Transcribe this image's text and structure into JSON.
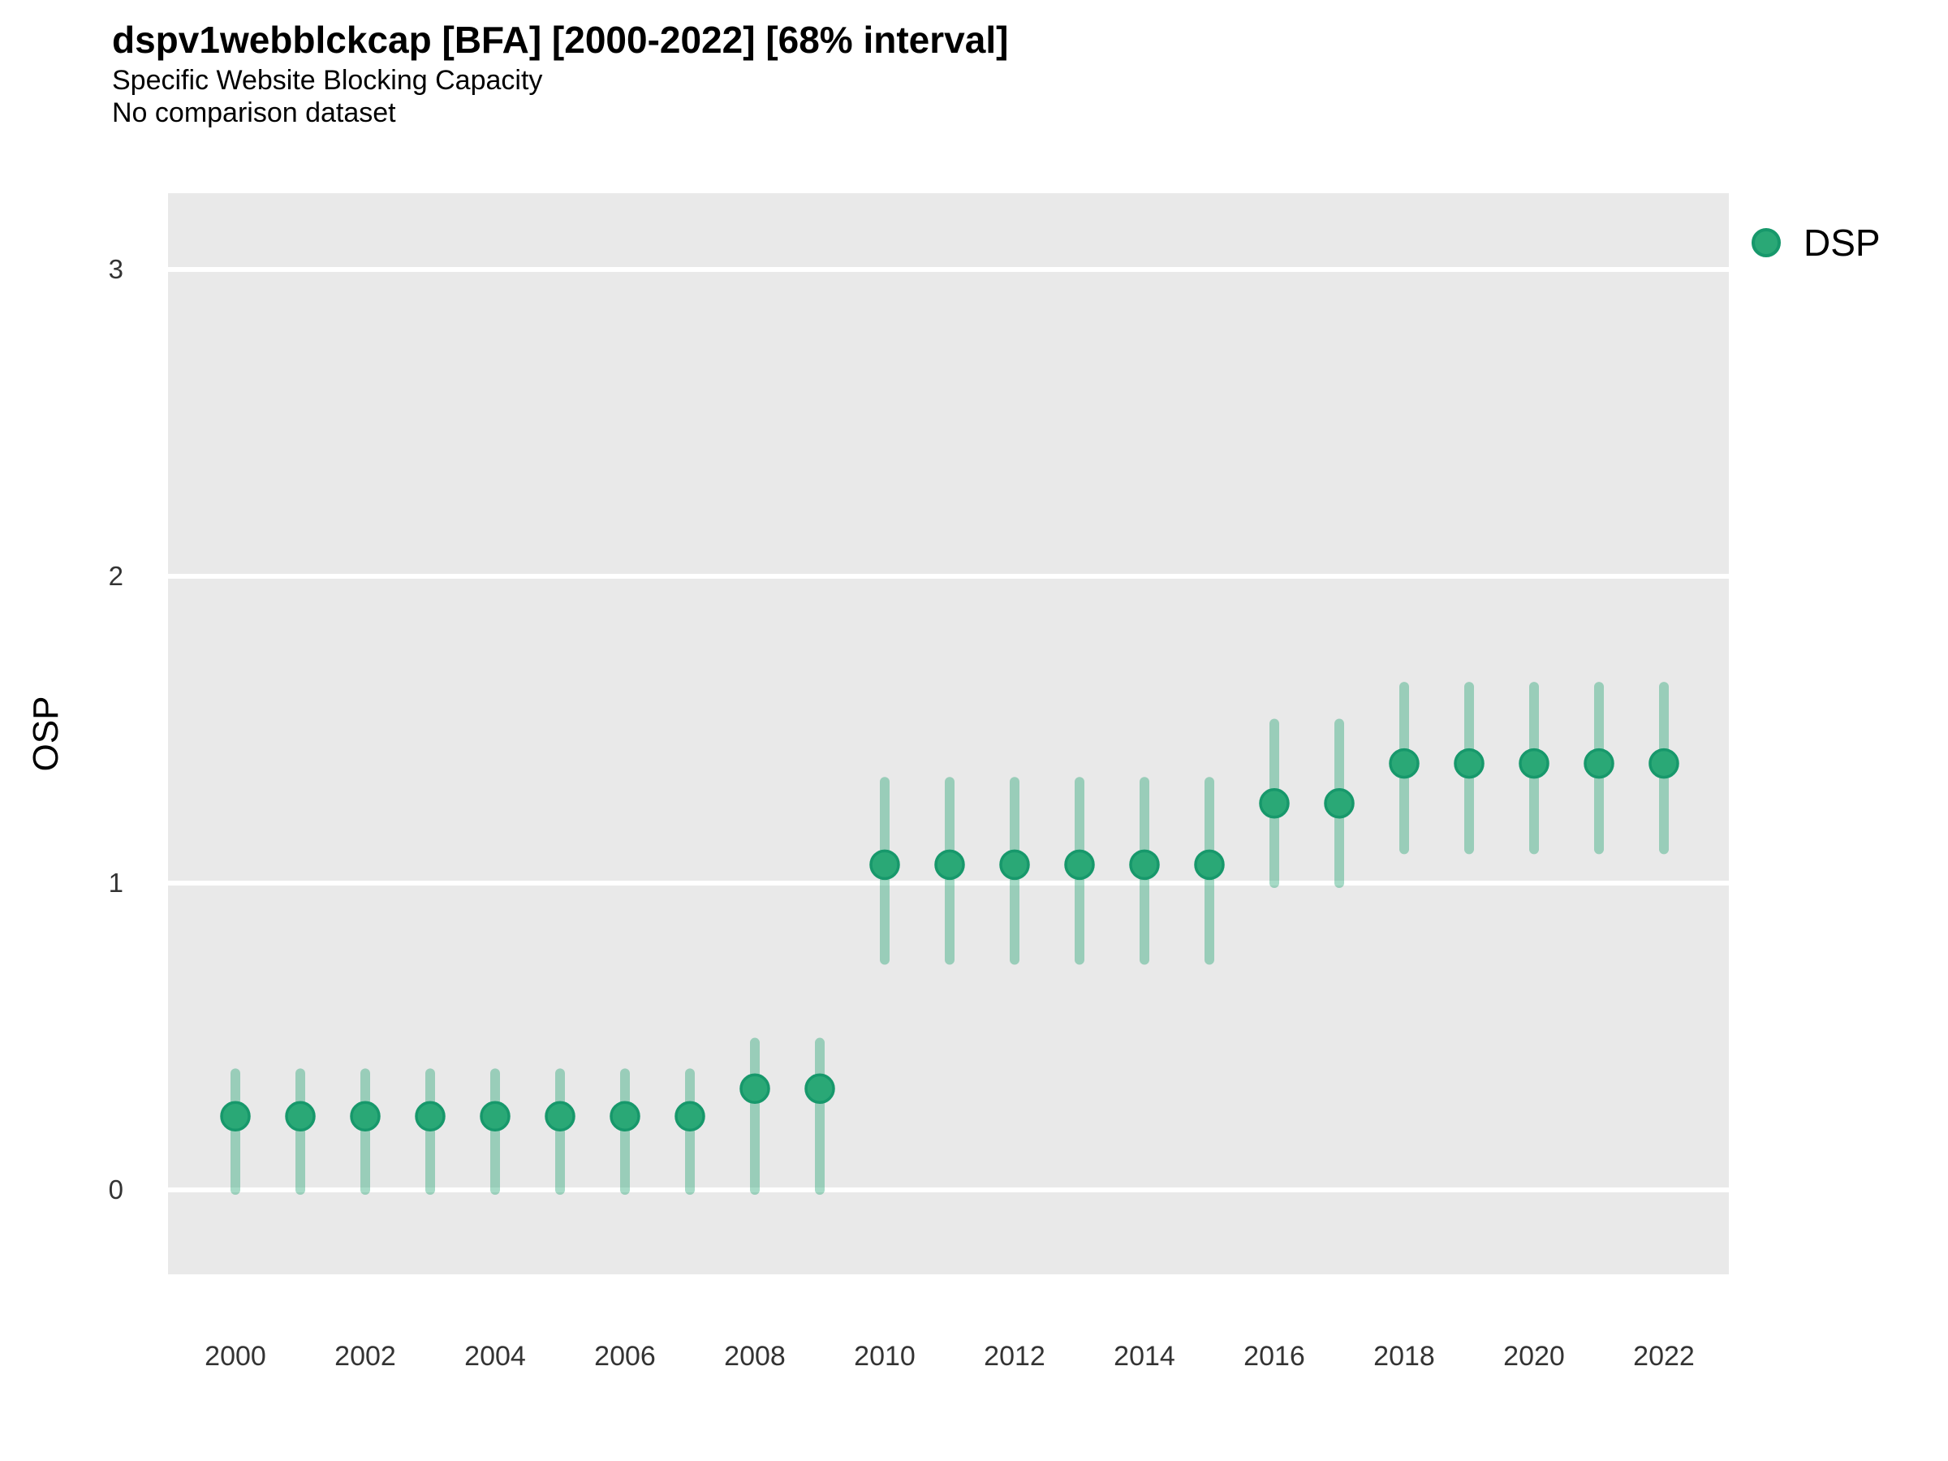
{
  "header": {
    "title": "dspv1webblckcap [BFA] [2000-2022] [68% interval]",
    "subtitle1": "Specific Website Blocking Capacity",
    "subtitle2": "No comparison dataset"
  },
  "axes": {
    "y_label": "OSP",
    "y_ticks": [
      0,
      1,
      2,
      3
    ],
    "x_ticks": [
      2000,
      2002,
      2004,
      2006,
      2008,
      2010,
      2012,
      2014,
      2016,
      2018,
      2020,
      2022
    ]
  },
  "legend": {
    "items": [
      {
        "label": "DSP",
        "color": "#2aa876"
      }
    ],
    "position": "right"
  },
  "colors": {
    "panel_background": "#e9e9e9",
    "gridline": "#ffffff",
    "point_fill": "#2aa876",
    "point_stroke": "#17986b",
    "interval_stroke": "#2aa876",
    "interval_opacity": 0.42
  },
  "chart_data": {
    "type": "scatter",
    "title": "dspv1webblckcap [BFA] [2000-2022] [68% interval]",
    "subtitle": "Specific Website Blocking Capacity",
    "note": "No comparison dataset",
    "xlabel": "",
    "ylabel": "OSP",
    "ylim": [
      -0.27,
      3.25
    ],
    "xlim": [
      1999,
      2023
    ],
    "grid": "horizontal-major-only",
    "legend_position": "right",
    "interval_level": "68%",
    "series": [
      {
        "name": "DSP",
        "color": "#2aa876",
        "x": [
          2000,
          2001,
          2002,
          2003,
          2004,
          2005,
          2006,
          2007,
          2008,
          2009,
          2010,
          2011,
          2012,
          2013,
          2014,
          2015,
          2016,
          2017,
          2018,
          2019,
          2020,
          2021,
          2022
        ],
        "y": [
          0.24,
          0.24,
          0.24,
          0.24,
          0.24,
          0.24,
          0.24,
          0.24,
          0.33,
          0.33,
          1.06,
          1.06,
          1.06,
          1.06,
          1.06,
          1.06,
          1.26,
          1.26,
          1.39,
          1.39,
          1.39,
          1.39,
          1.39
        ],
        "lower": [
          0.0,
          0.0,
          0.0,
          0.0,
          0.0,
          0.0,
          0.0,
          0.0,
          0.0,
          0.0,
          0.75,
          0.75,
          0.75,
          0.75,
          0.75,
          0.75,
          1.0,
          1.0,
          1.11,
          1.11,
          1.11,
          1.11,
          1.11
        ],
        "upper": [
          0.38,
          0.38,
          0.38,
          0.38,
          0.38,
          0.38,
          0.38,
          0.38,
          0.48,
          0.48,
          1.33,
          1.33,
          1.33,
          1.33,
          1.33,
          1.33,
          1.52,
          1.52,
          1.64,
          1.64,
          1.64,
          1.64,
          1.64
        ]
      }
    ]
  }
}
